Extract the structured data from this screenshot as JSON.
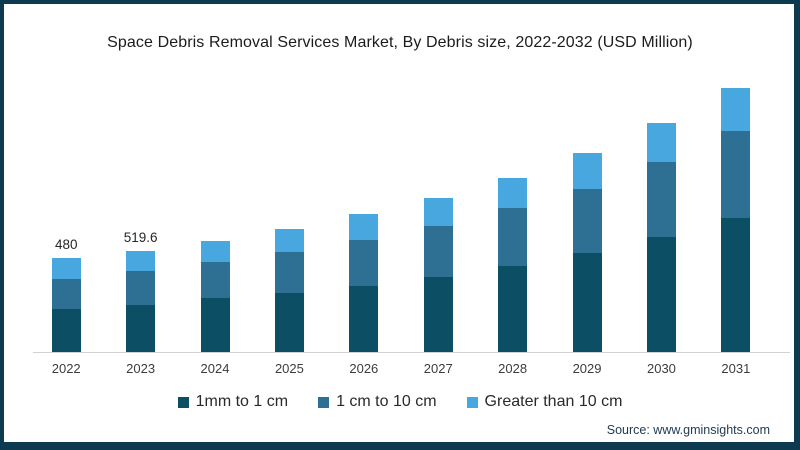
{
  "header": {
    "title": "Space Debris Removal Services Market, By Debris size, 2022-2032 (USD Million)"
  },
  "chart_data": {
    "type": "bar",
    "stacked": true,
    "title": "Space Debris Removal Services Market, By Debris size, 2022-2032 (USD Million)",
    "unit": "USD Million",
    "categories": [
      "2022",
      "2023",
      "2024",
      "2025",
      "2026",
      "2027",
      "2028",
      "2029",
      "2030",
      "2031"
    ],
    "series": [
      {
        "name": "1mm to 1 cm",
        "color": "#0c4e64",
        "values": [
          219,
          240,
          279,
          304,
          338,
          383,
          439,
          506,
          588,
          688
        ]
      },
      {
        "name": "1 cm to 10 cm",
        "color": "#2e7093",
        "values": [
          158,
          176,
          184,
          208,
          239,
          261,
          299,
          331,
          388,
          444
        ]
      },
      {
        "name": "Greater than 10 cm",
        "color": "#49a7e0",
        "values": [
          103,
          103.6,
          108,
          121,
          132,
          146,
          156,
          186,
          196,
          222
        ]
      }
    ],
    "totals": [
      480,
      519.6,
      571,
      633,
      709,
      790,
      894,
      1023,
      1172,
      1354
    ],
    "bar_labels": [
      "480",
      "519.6",
      "",
      "",
      "",
      "",
      "",
      "",
      "",
      ""
    ],
    "ylim": [
      0,
      1400
    ],
    "grid": false,
    "legend_position": "bottom",
    "y_axis_visible": false
  },
  "footer": {
    "source": "Source: www.gminsights.com"
  },
  "colors": {
    "frame_border": "#0e3a50",
    "axis_line": "#d2d2d2",
    "title_text": "#1c1c1c",
    "axis_label_text": "#3c3c3c",
    "source_text": "#1f3950"
  }
}
